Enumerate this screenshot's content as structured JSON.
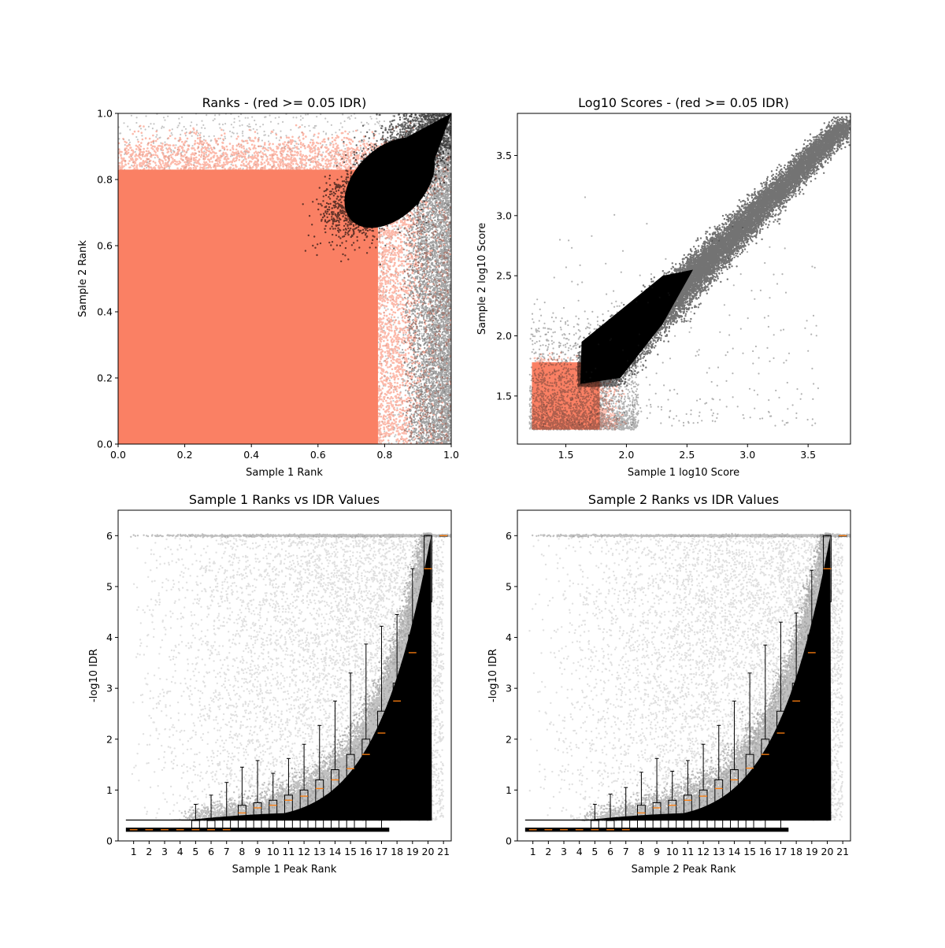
{
  "colors": {
    "sig": "#000000",
    "nonsig": "#fa8064",
    "median": "#ff7f0e",
    "grey": "#000000"
  },
  "chart_data": [
    {
      "type": "scatter",
      "title": "Ranks - (red >= 0.05 IDR)",
      "xlabel": "Sample 1 Rank",
      "ylabel": "Sample 2 Rank",
      "xlim": [
        0,
        1
      ],
      "ylim": [
        0,
        1
      ],
      "xticks": [
        "0.0",
        "0.2",
        "0.4",
        "0.6",
        "0.8",
        "1.0"
      ],
      "yticks": [
        "0.0",
        "0.2",
        "0.4",
        "0.6",
        "0.8",
        "1.0"
      ],
      "series": [
        {
          "color": "#fa8064",
          "x_range": [
            0,
            0.88
          ],
          "y_range": [
            0,
            0.9
          ]
        },
        {
          "color": "#000000",
          "region": "ellipse near (0.82, 0.82) extending to (1.0, 1.0), lower edge ~0.62"
        }
      ]
    },
    {
      "type": "scatter",
      "title": "Log10 Scores - (red >= 0.05 IDR)",
      "xlabel": "Sample 1 log10 Score",
      "ylabel": "Sample 2 log10 Score",
      "xlim": [
        1.1,
        3.85
      ],
      "ylim": [
        1.1,
        3.85
      ],
      "xticks": [
        "1.5",
        "2.0",
        "2.5",
        "3.0",
        "3.5"
      ],
      "yticks": [
        "1.5",
        "2.0",
        "2.5",
        "3.0",
        "3.5"
      ],
      "series": [
        {
          "color": "#fa8064",
          "x_range": [
            1.22,
            1.9
          ],
          "y_range": [
            1.22,
            1.85
          ]
        },
        {
          "color": "#000000",
          "trend": "along diagonal from (1.6, 1.6) to (3.75, 3.75)"
        }
      ]
    },
    {
      "type": "box",
      "title": "Sample 1 Ranks vs IDR Values",
      "xlabel": "Sample 1 Peak Rank",
      "ylabel": "-log10 IDR",
      "ylim": [
        0,
        6.5
      ],
      "xticks": [
        "1",
        "2",
        "3",
        "4",
        "5",
        "6",
        "7",
        "8",
        "9",
        "10",
        "11",
        "12",
        "13",
        "14",
        "15",
        "16",
        "17",
        "18",
        "19",
        "20",
        "21"
      ],
      "yticks": [
        "0",
        "1",
        "2",
        "3",
        "4",
        "5",
        "6"
      ],
      "boxes": [
        {
          "q1": 0.22,
          "med": 0.22,
          "q3": 0.22,
          "whislo": 0.22,
          "whishi": 0.22
        },
        {
          "q1": 0.22,
          "med": 0.22,
          "q3": 0.22,
          "whislo": 0.22,
          "whishi": 0.22
        },
        {
          "q1": 0.22,
          "med": 0.22,
          "q3": 0.22,
          "whislo": 0.22,
          "whishi": 0.22
        },
        {
          "q1": 0.22,
          "med": 0.22,
          "q3": 0.22,
          "whislo": 0.22,
          "whishi": 0.22
        },
        {
          "q1": 0.22,
          "med": 0.22,
          "q3": 0.4,
          "whislo": 0.22,
          "whishi": 0.72
        },
        {
          "q1": 0.22,
          "med": 0.22,
          "q3": 0.4,
          "whislo": 0.22,
          "whishi": 0.9
        },
        {
          "q1": 0.22,
          "med": 0.22,
          "q3": 0.45,
          "whislo": 0.22,
          "whishi": 1.15
        },
        {
          "q1": 0.22,
          "med": 0.55,
          "q3": 0.7,
          "whislo": 0.22,
          "whishi": 1.45
        },
        {
          "q1": 0.22,
          "med": 0.65,
          "q3": 0.75,
          "whislo": 0.22,
          "whishi": 1.58
        },
        {
          "q1": 0.22,
          "med": 0.7,
          "q3": 0.8,
          "whislo": 0.22,
          "whishi": 1.33
        },
        {
          "q1": 0.22,
          "med": 0.8,
          "q3": 0.9,
          "whislo": 0.22,
          "whishi": 1.62
        },
        {
          "q1": 0.22,
          "med": 0.88,
          "q3": 1.0,
          "whislo": 0.22,
          "whishi": 1.9
        },
        {
          "q1": 0.22,
          "med": 1.03,
          "q3": 1.2,
          "whislo": 0.22,
          "whishi": 2.27
        },
        {
          "q1": 0.22,
          "med": 1.2,
          "q3": 1.4,
          "whislo": 0.22,
          "whishi": 2.75
        },
        {
          "q1": 0.22,
          "med": 1.42,
          "q3": 1.7,
          "whislo": 0.22,
          "whishi": 3.3
        },
        {
          "q1": 0.82,
          "med": 1.7,
          "q3": 2.0,
          "whislo": 0.22,
          "whishi": 3.87
        },
        {
          "q1": 1.25,
          "med": 2.12,
          "q3": 2.55,
          "whislo": 0.22,
          "whishi": 4.22
        },
        {
          "q1": 2.12,
          "med": 2.75,
          "q3": 3.1,
          "whislo": 0.72,
          "whishi": 4.45
        },
        {
          "q1": 3.35,
          "med": 3.7,
          "q3": 4.05,
          "whislo": 2.15,
          "whishi": 5.35
        },
        {
          "q1": 4.7,
          "med": 5.35,
          "q3": 6.0,
          "whislo": 2.78,
          "whishi": 6.0
        },
        {
          "q1": 6.0,
          "med": 6.0,
          "q3": 6.0,
          "whislo": 6.0,
          "whishi": 6.0
        }
      ]
    },
    {
      "type": "box",
      "title": "Sample 2 Ranks vs IDR Values",
      "xlabel": "Sample 2 Peak Rank",
      "ylabel": "-log10 IDR",
      "ylim": [
        0,
        6.5
      ],
      "xticks": [
        "1",
        "2",
        "3",
        "4",
        "5",
        "6",
        "7",
        "8",
        "9",
        "10",
        "11",
        "12",
        "13",
        "14",
        "15",
        "16",
        "17",
        "18",
        "19",
        "20",
        "21"
      ],
      "yticks": [
        "0",
        "1",
        "2",
        "3",
        "4",
        "5",
        "6"
      ],
      "boxes": [
        {
          "q1": 0.22,
          "med": 0.22,
          "q3": 0.22,
          "whislo": 0.22,
          "whishi": 0.22
        },
        {
          "q1": 0.22,
          "med": 0.22,
          "q3": 0.22,
          "whislo": 0.22,
          "whishi": 0.22
        },
        {
          "q1": 0.22,
          "med": 0.22,
          "q3": 0.22,
          "whislo": 0.22,
          "whishi": 0.22
        },
        {
          "q1": 0.22,
          "med": 0.22,
          "q3": 0.22,
          "whislo": 0.22,
          "whishi": 0.22
        },
        {
          "q1": 0.22,
          "med": 0.22,
          "q3": 0.4,
          "whislo": 0.22,
          "whishi": 0.72
        },
        {
          "q1": 0.22,
          "med": 0.22,
          "q3": 0.4,
          "whislo": 0.22,
          "whishi": 0.92
        },
        {
          "q1": 0.22,
          "med": 0.22,
          "q3": 0.45,
          "whislo": 0.22,
          "whishi": 1.05
        },
        {
          "q1": 0.22,
          "med": 0.55,
          "q3": 0.7,
          "whislo": 0.22,
          "whishi": 1.35
        },
        {
          "q1": 0.22,
          "med": 0.65,
          "q3": 0.75,
          "whislo": 0.22,
          "whishi": 1.62
        },
        {
          "q1": 0.22,
          "med": 0.7,
          "q3": 0.8,
          "whislo": 0.22,
          "whishi": 1.37
        },
        {
          "q1": 0.22,
          "med": 0.8,
          "q3": 0.9,
          "whislo": 0.22,
          "whishi": 1.58
        },
        {
          "q1": 0.22,
          "med": 0.88,
          "q3": 1.0,
          "whislo": 0.22,
          "whishi": 1.9
        },
        {
          "q1": 0.22,
          "med": 1.03,
          "q3": 1.2,
          "whislo": 0.22,
          "whishi": 2.27
        },
        {
          "q1": 0.22,
          "med": 1.2,
          "q3": 1.4,
          "whislo": 0.22,
          "whishi": 2.75
        },
        {
          "q1": 0.22,
          "med": 1.43,
          "q3": 1.7,
          "whislo": 0.22,
          "whishi": 3.3
        },
        {
          "q1": 0.82,
          "med": 1.7,
          "q3": 2.0,
          "whislo": 0.22,
          "whishi": 3.85
        },
        {
          "q1": 1.2,
          "med": 2.12,
          "q3": 2.55,
          "whislo": 0.22,
          "whishi": 4.3
        },
        {
          "q1": 2.1,
          "med": 2.75,
          "q3": 3.1,
          "whislo": 0.67,
          "whishi": 4.48
        },
        {
          "q1": 3.33,
          "med": 3.7,
          "q3": 4.05,
          "whislo": 2.15,
          "whishi": 5.32
        },
        {
          "q1": 4.7,
          "med": 5.35,
          "q3": 6.0,
          "whislo": 2.78,
          "whishi": 6.0
        },
        {
          "q1": 6.0,
          "med": 6.0,
          "q3": 6.0,
          "whislo": 6.0,
          "whishi": 6.0
        }
      ]
    }
  ]
}
